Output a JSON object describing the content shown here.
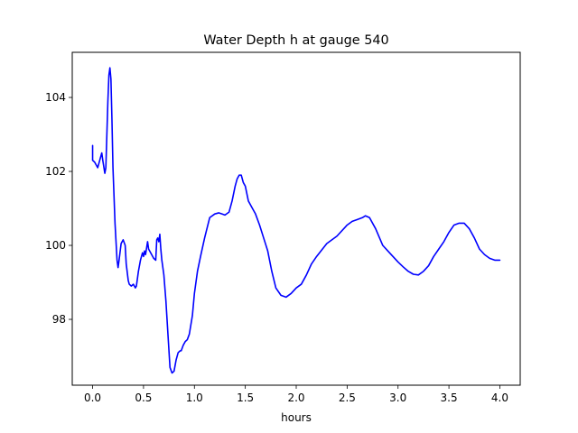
{
  "chart_data": {
    "type": "line",
    "title": "Water Depth h at gauge 540",
    "xlabel": "hours",
    "ylabel": "",
    "xlim": [
      -0.2,
      4.2
    ],
    "ylim": [
      96.22,
      105.22
    ],
    "xticks": [
      0.0,
      0.5,
      1.0,
      1.5,
      2.0,
      2.5,
      3.0,
      3.5,
      4.0
    ],
    "xtick_labels": [
      "0.0",
      "0.5",
      "1.0",
      "1.5",
      "2.0",
      "2.5",
      "3.0",
      "3.5",
      "4.0"
    ],
    "yticks": [
      98,
      100,
      102,
      104
    ],
    "ytick_labels": [
      "98",
      "100",
      "102",
      "104"
    ],
    "grid": false,
    "series": [
      {
        "color": "#0000ff",
        "x": [
          0.0,
          0.0,
          0.02,
          0.05,
          0.07,
          0.09,
          0.1,
          0.12,
          0.13,
          0.15,
          0.16,
          0.17,
          0.18,
          0.19,
          0.2,
          0.22,
          0.24,
          0.25,
          0.26,
          0.28,
          0.29,
          0.3,
          0.32,
          0.33,
          0.35,
          0.36,
          0.38,
          0.4,
          0.42,
          0.43,
          0.45,
          0.47,
          0.49,
          0.5,
          0.51,
          0.52,
          0.54,
          0.55,
          0.56,
          0.58,
          0.6,
          0.62,
          0.63,
          0.64,
          0.65,
          0.66,
          0.67,
          0.68,
          0.7,
          0.72,
          0.74,
          0.76,
          0.78,
          0.8,
          0.82,
          0.84,
          0.86,
          0.87,
          0.89,
          0.91,
          0.93,
          0.95,
          0.98,
          1.0,
          1.03,
          1.06,
          1.1,
          1.15,
          1.2,
          1.24,
          1.27,
          1.3,
          1.34,
          1.37,
          1.4,
          1.42,
          1.44,
          1.46,
          1.48,
          1.5,
          1.53,
          1.56,
          1.6,
          1.64,
          1.68,
          1.72,
          1.76,
          1.8,
          1.85,
          1.9,
          1.95,
          2.0,
          2.05,
          2.1,
          2.15,
          2.2,
          2.3,
          2.4,
          2.5,
          2.55,
          2.6,
          2.65,
          2.68,
          2.72,
          2.78,
          2.85,
          2.9,
          2.95,
          3.0,
          3.05,
          3.1,
          3.15,
          3.2,
          3.25,
          3.3,
          3.35,
          3.4,
          3.45,
          3.5,
          3.55,
          3.6,
          3.65,
          3.7,
          3.75,
          3.8,
          3.85,
          3.9,
          3.95,
          4.0
        ],
        "y": [
          102.7,
          102.3,
          102.25,
          102.1,
          102.3,
          102.5,
          102.3,
          101.95,
          102.1,
          103.9,
          104.6,
          104.8,
          104.5,
          103.4,
          102.1,
          100.6,
          99.6,
          99.4,
          99.6,
          100.05,
          100.1,
          100.15,
          100.0,
          99.5,
          99.05,
          98.95,
          98.9,
          98.95,
          98.85,
          98.9,
          99.3,
          99.6,
          99.8,
          99.7,
          99.85,
          99.75,
          100.1,
          99.9,
          99.85,
          99.75,
          99.65,
          99.6,
          100.15,
          100.2,
          100.1,
          100.3,
          99.9,
          99.6,
          99.2,
          98.5,
          97.6,
          96.7,
          96.55,
          96.6,
          96.9,
          97.1,
          97.15,
          97.15,
          97.3,
          97.4,
          97.45,
          97.6,
          98.1,
          98.7,
          99.3,
          99.7,
          100.2,
          100.75,
          100.85,
          100.88,
          100.85,
          100.82,
          100.9,
          101.2,
          101.6,
          101.8,
          101.9,
          101.9,
          101.7,
          101.6,
          101.2,
          101.05,
          100.85,
          100.55,
          100.2,
          99.85,
          99.3,
          98.85,
          98.65,
          98.6,
          98.7,
          98.85,
          98.95,
          99.2,
          99.5,
          99.7,
          100.05,
          100.25,
          100.55,
          100.65,
          100.7,
          100.75,
          100.8,
          100.75,
          100.45,
          100.0,
          99.85,
          99.7,
          99.55,
          99.42,
          99.3,
          99.22,
          99.2,
          99.3,
          99.45,
          99.7,
          99.9,
          100.1,
          100.35,
          100.55,
          100.6,
          100.6,
          100.45,
          100.2,
          99.9,
          99.75,
          99.65,
          99.6,
          99.6
        ]
      }
    ]
  }
}
